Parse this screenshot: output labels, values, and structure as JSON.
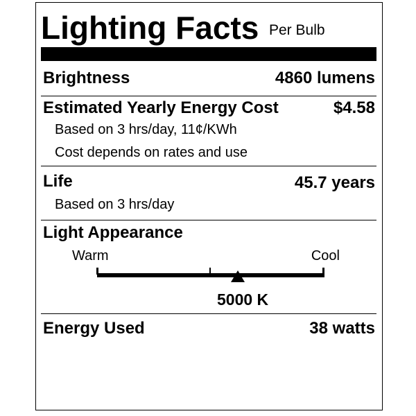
{
  "title": "Lighting Facts",
  "subtitle": "Per Bulb",
  "brightness": {
    "label": "Brightness",
    "value": "4860 lumens"
  },
  "cost": {
    "label": "Estimated Yearly Energy Cost",
    "value": "$4.58",
    "note1": "Based on 3 hrs/day, 11¢/KWh",
    "note2": "Cost depends on rates and use"
  },
  "life": {
    "label": "Life",
    "value": "45.7 years",
    "note": "Based on 3 hrs/day"
  },
  "appearance": {
    "label": "Light Appearance",
    "warm": "Warm",
    "cool": "Cool",
    "value": "5000 K",
    "marker_fraction": 0.62
  },
  "energy": {
    "label": "Energy Used",
    "value": "38 watts"
  }
}
